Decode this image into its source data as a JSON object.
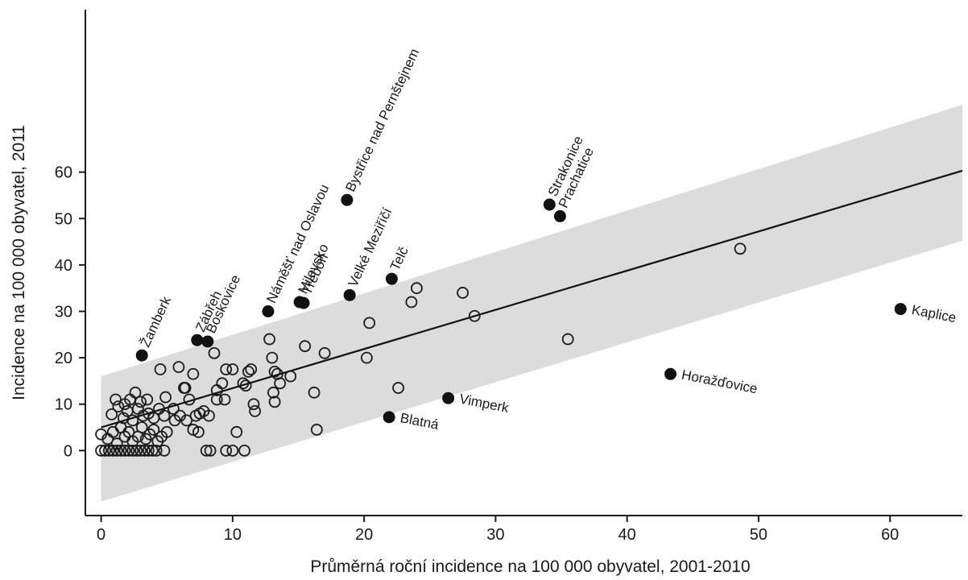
{
  "chart_data": {
    "type": "scatter",
    "xlabel": "Průměrná roční incidence na 100 000 obyvatel, 2001-2010",
    "ylabel": "Incidence na 100 000 obyvatel, 2011",
    "xlim": [
      -1.2,
      65.5
    ],
    "ylim": [
      -14,
      95
    ],
    "x_ticks": [
      0,
      10,
      20,
      30,
      40,
      50,
      60
    ],
    "y_ticks": [
      0,
      10,
      20,
      30,
      40,
      50,
      60
    ],
    "grid": false,
    "regression_line": {
      "x": [
        0,
        65.5
      ],
      "y": [
        5,
        60.3
      ]
    },
    "prediction_band": {
      "x": [
        0,
        65.5
      ],
      "lower": [
        -11,
        45.2
      ],
      "upper": [
        16,
        74.5
      ],
      "color": "#dcdcdd"
    },
    "colors": {
      "open": "#1a1a1a",
      "filled": "#111111",
      "line": "#111111"
    },
    "series": [
      {
        "marker": "open-circle",
        "points": [
          [
            0,
            0
          ],
          [
            0.3,
            0
          ],
          [
            0.6,
            0
          ],
          [
            0.9,
            0
          ],
          [
            1.2,
            0
          ],
          [
            1.5,
            0
          ],
          [
            1.8,
            0
          ],
          [
            2.1,
            0
          ],
          [
            2.4,
            0
          ],
          [
            2.7,
            0
          ],
          [
            3.0,
            0
          ],
          [
            3.3,
            0
          ],
          [
            3.6,
            0
          ],
          [
            3.9,
            0
          ],
          [
            4.2,
            0
          ],
          [
            4.8,
            0
          ],
          [
            8.0,
            0
          ],
          [
            8.3,
            0
          ],
          [
            9.5,
            0
          ],
          [
            10.0,
            0
          ],
          [
            10.9,
            0
          ],
          [
            0,
            3.5
          ],
          [
            0.5,
            2.5
          ],
          [
            0.9,
            4
          ],
          [
            1.2,
            1.5
          ],
          [
            1.5,
            5
          ],
          [
            1.8,
            3
          ],
          [
            2.1,
            4
          ],
          [
            2.4,
            2
          ],
          [
            2.8,
            3
          ],
          [
            3.1,
            5
          ],
          [
            3.4,
            2.5
          ],
          [
            3.7,
            3.5
          ],
          [
            4.0,
            4.5
          ],
          [
            4.3,
            2
          ],
          [
            4.6,
            3
          ],
          [
            5.0,
            4
          ],
          [
            0.8,
            7.8
          ],
          [
            1.3,
            9.5
          ],
          [
            1.7,
            7
          ],
          [
            2.0,
            8.5
          ],
          [
            2.4,
            6.5
          ],
          [
            2.8,
            9
          ],
          [
            3.2,
            7.5
          ],
          [
            3.6,
            8
          ],
          [
            4.0,
            7
          ],
          [
            4.4,
            9
          ],
          [
            4.8,
            7.5
          ],
          [
            1.1,
            11
          ],
          [
            1.8,
            10
          ],
          [
            2.2,
            11
          ],
          [
            2.6,
            12.5
          ],
          [
            3.0,
            10.5
          ],
          [
            3.5,
            11
          ],
          [
            4.5,
            17.5
          ],
          [
            4.9,
            11.5
          ],
          [
            5.5,
            9
          ],
          [
            5.6,
            6.5
          ],
          [
            6.0,
            7.5
          ],
          [
            6.3,
            13.5
          ],
          [
            6.5,
            6.5
          ],
          [
            6.7,
            11
          ],
          [
            7.0,
            16.5
          ],
          [
            7.2,
            7.5
          ],
          [
            7.5,
            8
          ],
          [
            7.8,
            8.5
          ],
          [
            8.2,
            7.5
          ],
          [
            8.6,
            21
          ],
          [
            8.8,
            11
          ],
          [
            9.2,
            14.5
          ],
          [
            9.5,
            17.5
          ],
          [
            10.0,
            17.5
          ],
          [
            10.3,
            4
          ],
          [
            5.9,
            18
          ],
          [
            6.4,
            13.5
          ],
          [
            7.0,
            4.5
          ],
          [
            7.4,
            4
          ],
          [
            8.8,
            13
          ],
          [
            9.4,
            11
          ],
          [
            10.8,
            14.5
          ],
          [
            11.0,
            14
          ],
          [
            11.2,
            17
          ],
          [
            11.4,
            17.5
          ],
          [
            11.7,
            8.5
          ],
          [
            11.6,
            10
          ],
          [
            12.8,
            24
          ],
          [
            13.0,
            20
          ],
          [
            13.2,
            17
          ],
          [
            13.4,
            16.5
          ],
          [
            13.6,
            14.5
          ],
          [
            13.1,
            12.5
          ],
          [
            13.2,
            10.5
          ],
          [
            14.4,
            16
          ],
          [
            15.5,
            22.5
          ],
          [
            16.2,
            12.5
          ],
          [
            16.4,
            4.5
          ],
          [
            17.0,
            21
          ],
          [
            20.2,
            20
          ],
          [
            20.4,
            27.5
          ],
          [
            22.6,
            13.5
          ],
          [
            23.6,
            32
          ],
          [
            24.0,
            35
          ],
          [
            27.5,
            34
          ],
          [
            28.4,
            29
          ],
          [
            35.5,
            24
          ],
          [
            48.6,
            43.5
          ]
        ]
      },
      {
        "marker": "filled-circle",
        "points": [
          {
            "x": 3.1,
            "y": 20.5,
            "label": "Žamberk",
            "dir": "up"
          },
          {
            "x": 7.3,
            "y": 23.8,
            "label": "Zábřeh",
            "dir": "up"
          },
          {
            "x": 8.1,
            "y": 23.5,
            "label": "Boskovice",
            "dir": "up"
          },
          {
            "x": 12.7,
            "y": 30,
            "label": "Náměšť nad Oslavou",
            "dir": "up"
          },
          {
            "x": 15.1,
            "y": 32,
            "label": "Milevsko",
            "dir": "up"
          },
          {
            "x": 15.4,
            "y": 31.8,
            "label": "Třeboň",
            "dir": "up"
          },
          {
            "x": 18.7,
            "y": 54,
            "label": "Bystřice nad Pernštejnem",
            "dir": "up"
          },
          {
            "x": 18.9,
            "y": 33.5,
            "label": "Velké Meziříčí",
            "dir": "up"
          },
          {
            "x": 22.1,
            "y": 37,
            "label": "Telč",
            "dir": "up"
          },
          {
            "x": 34.1,
            "y": 53,
            "label": "Strakonice",
            "dir": "up"
          },
          {
            "x": 34.9,
            "y": 50.5,
            "label": "Prachatice",
            "dir": "up"
          },
          {
            "x": 21.9,
            "y": 7.2,
            "label": "Blatná",
            "dir": "down"
          },
          {
            "x": 26.4,
            "y": 11.3,
            "label": "Vimperk",
            "dir": "down"
          },
          {
            "x": 43.3,
            "y": 16.5,
            "label": "Horažďovice",
            "dir": "down"
          },
          {
            "x": 60.8,
            "y": 30.5,
            "label": "Kaplice",
            "dir": "down"
          }
        ]
      }
    ]
  }
}
